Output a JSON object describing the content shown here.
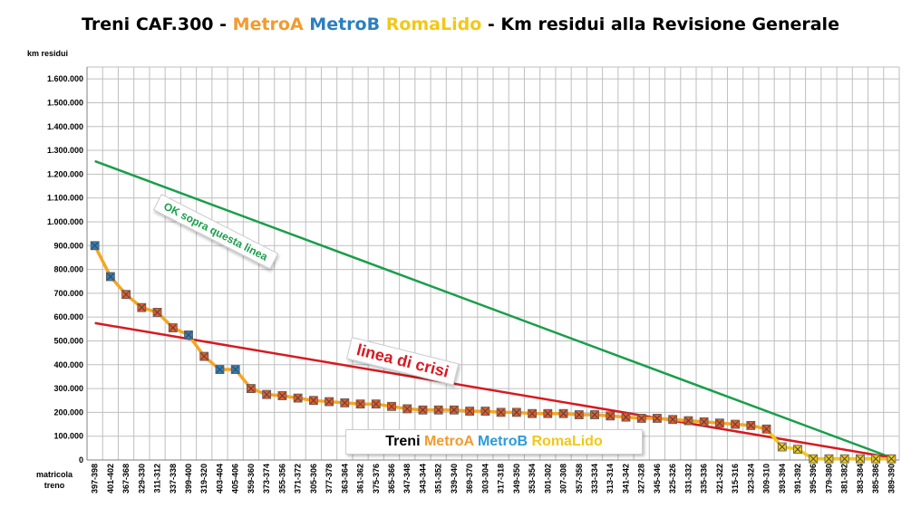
{
  "title": {
    "part1": "Treni CAF.300  - ",
    "metroA": "MetroA",
    "metroB": "MetroB",
    "romaLido": "RomaLido",
    "part2": " - Km residui alla Revisione Generale"
  },
  "colors": {
    "metroA": "#f39a2e",
    "metroB": "#2c7fc0",
    "romaLido": "#f2c818",
    "line_ok": "#1a9e4a",
    "line_crisi": "#d71920",
    "series_line": "#f5a623"
  },
  "annotations": {
    "ok": "OK sopra questa linea",
    "crisi": "linea di crisi"
  },
  "legend": {
    "treni": "Treni",
    "metroA": "MetroA",
    "metroB": "MetroB",
    "romaLido": "RomaLido"
  },
  "chart_data": {
    "type": "line",
    "ylabel": "km residui",
    "xlabel": "matricola treno",
    "ylim": [
      0,
      1650000
    ],
    "yticks": [
      "0",
      "100.000",
      "200.000",
      "300.000",
      "400.000",
      "500.000",
      "600.000",
      "700.000",
      "800.000",
      "900.000",
      "1.000.000",
      "1.100.000",
      "1.200.000",
      "1.300.000",
      "1.400.000",
      "1.500.000",
      "1.600.000"
    ],
    "categories": [
      "397-398",
      "401-402",
      "367-368",
      "329-330",
      "311-312",
      "337-338",
      "399-400",
      "319-320",
      "403-404",
      "405-406",
      "359-360",
      "373-374",
      "355-356",
      "371-372",
      "305-306",
      "377-378",
      "363-364",
      "361-362",
      "375-376",
      "365-366",
      "347-348",
      "343-344",
      "351-352",
      "339-340",
      "369-370",
      "303-304",
      "317-318",
      "349-350",
      "353-354",
      "301-302",
      "307-308",
      "357-358",
      "333-334",
      "313-314",
      "341-342",
      "327-328",
      "345-346",
      "325-326",
      "331-332",
      "335-336",
      "321-322",
      "315-316",
      "323-324",
      "309-310",
      "393-394",
      "391-392",
      "395-396",
      "379-380",
      "381-382",
      "383-384",
      "385-386",
      "389-390"
    ],
    "values": [
      900000,
      770000,
      695000,
      640000,
      620000,
      555000,
      525000,
      435000,
      380000,
      380000,
      300000,
      275000,
      270000,
      260000,
      250000,
      245000,
      240000,
      235000,
      235000,
      225000,
      215000,
      210000,
      210000,
      210000,
      205000,
      205000,
      200000,
      200000,
      195000,
      195000,
      195000,
      190000,
      190000,
      185000,
      180000,
      175000,
      175000,
      170000,
      165000,
      160000,
      155000,
      150000,
      145000,
      130000,
      55000,
      45000,
      5000,
      5000,
      5000,
      5000,
      5000,
      5000
    ],
    "fleet": [
      "MetroB",
      "MetroB",
      "MetroA",
      "MetroA",
      "MetroA",
      "MetroA",
      "MetroB",
      "MetroA",
      "MetroB",
      "MetroB",
      "MetroA",
      "MetroA",
      "MetroA",
      "MetroA",
      "MetroA",
      "MetroA",
      "MetroA",
      "MetroA",
      "MetroA",
      "MetroA",
      "MetroA",
      "MetroA",
      "MetroA",
      "MetroA",
      "MetroA",
      "MetroA",
      "MetroA",
      "MetroA",
      "MetroA",
      "MetroA",
      "MetroA",
      "MetroA",
      "MetroA",
      "MetroA",
      "MetroA",
      "MetroA",
      "MetroA",
      "MetroA",
      "MetroA",
      "MetroA",
      "MetroA",
      "MetroA",
      "MetroA",
      "MetroA",
      "RomaLido",
      "RomaLido",
      "RomaLido",
      "RomaLido",
      "RomaLido",
      "RomaLido",
      "RomaLido",
      "RomaLido"
    ],
    "reference_lines": [
      {
        "name": "OK sopra questa linea",
        "start": 1255000,
        "end": 10000
      },
      {
        "name": "linea di crisi",
        "start": 575000,
        "end": 10000
      }
    ],
    "grid": true
  }
}
